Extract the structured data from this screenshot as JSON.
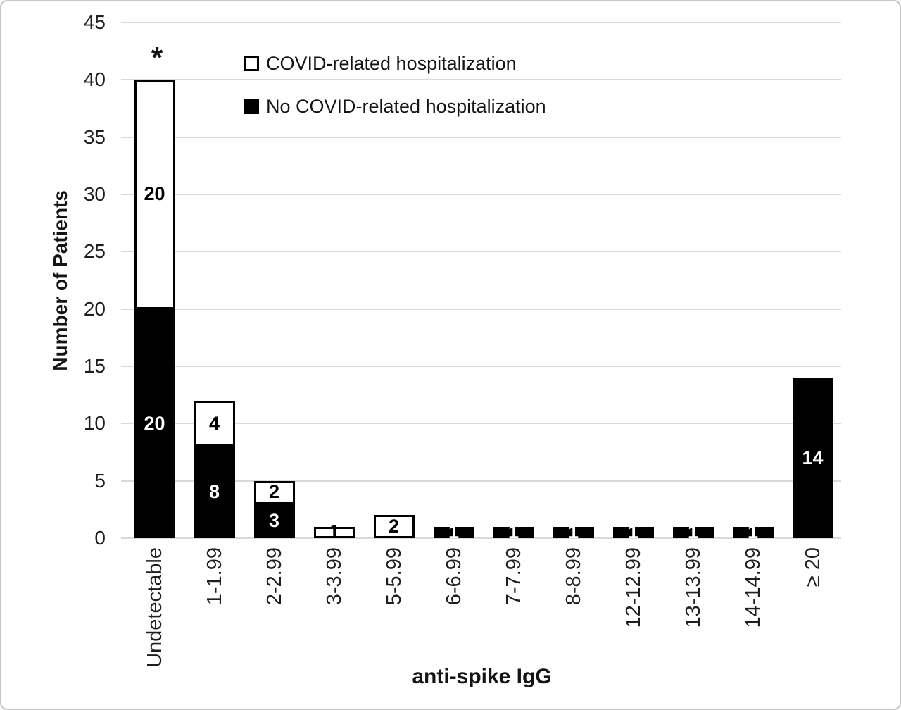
{
  "chart_data": {
    "type": "bar",
    "stacked": true,
    "title": "",
    "xlabel": "anti-spike IgG",
    "ylabel": "Number of Patients",
    "ylim": [
      0,
      45
    ],
    "ytick_step": 5,
    "grid": true,
    "legend_position": "inside-top-left",
    "categories": [
      "Undetectable",
      "1-1.99",
      "2-2.99",
      "3-3.99",
      "5-5.99",
      "6-6.99",
      "7-7.99",
      "8-8.99",
      "12-12.99",
      "13-13.99",
      "14-14.99",
      "≥ 20"
    ],
    "series": [
      {
        "name": "No COVID-related hospitalization",
        "color": "#000000",
        "label_color": "#ffffff",
        "values": [
          20,
          8,
          3,
          0,
          0,
          1,
          1,
          1,
          1,
          1,
          1,
          14
        ]
      },
      {
        "name": "COVID-related hospitalization",
        "color": "#ffffff",
        "label_color": "#000000",
        "values": [
          20,
          4,
          2,
          1,
          2,
          0,
          0,
          0,
          0,
          0,
          0,
          0
        ]
      }
    ],
    "annotations": [
      {
        "text": "*",
        "category": "Undetectable",
        "position": "above-bar"
      }
    ],
    "colors": {
      "gridline": "#d9d9d9",
      "bar_border": "#000000",
      "text": "#1e1e1e"
    }
  }
}
